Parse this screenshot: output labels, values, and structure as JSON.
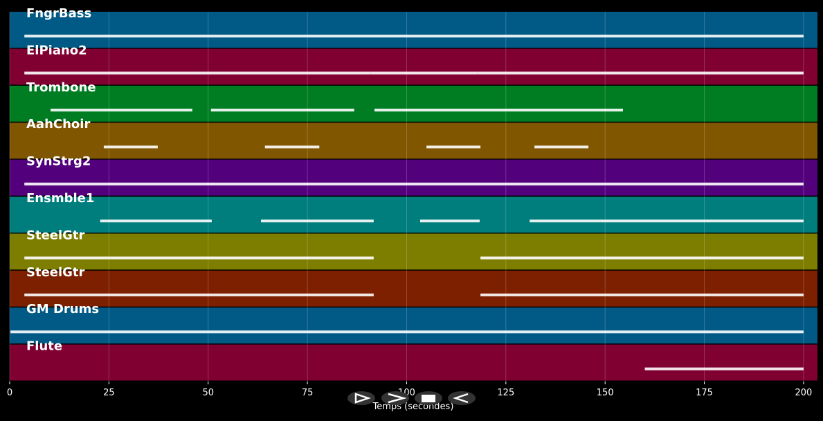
{
  "chart_data": {
    "type": "pianoroll",
    "xlabel": "Temps (secondes)",
    "xlim": [
      0,
      203.5
    ],
    "xticks": [
      0,
      25,
      50,
      75,
      100,
      125,
      150,
      175,
      200
    ],
    "grid": true,
    "tracks": [
      {
        "name": "FngrBass",
        "color": "#005a85",
        "spans": [
          [
            3.7,
            200
          ]
        ]
      },
      {
        "name": "ElPiano2",
        "color": "#800032",
        "spans": [
          [
            3.7,
            91
          ],
          [
            91,
            118
          ],
          [
            118,
            200
          ]
        ]
      },
      {
        "name": "Trombone",
        "color": "#007d22",
        "spans": [
          [
            10.3,
            46
          ],
          [
            50.7,
            86.8
          ],
          [
            91.9,
            154.5
          ]
        ]
      },
      {
        "name": "AahChoir",
        "color": "#805600",
        "spans": [
          [
            23.7,
            37.3
          ],
          [
            64.3,
            78
          ],
          [
            105,
            118.6
          ],
          [
            132.2,
            145.8
          ]
        ]
      },
      {
        "name": "SynStrg2",
        "color": "#53007d",
        "spans": [
          [
            3.7,
            200
          ]
        ]
      },
      {
        "name": "Ensmble1",
        "color": "#007d7d",
        "spans": [
          [
            22.8,
            50.9
          ],
          [
            63.3,
            91.7
          ],
          [
            103.4,
            118.4
          ],
          [
            131,
            200
          ]
        ]
      },
      {
        "name": "SteelGtr",
        "color": "#7d7d00",
        "spans": [
          [
            3.7,
            91.7
          ],
          [
            118.6,
            200
          ]
        ]
      },
      {
        "name": "SteelGtr",
        "color": "#7d2000",
        "spans": [
          [
            3.7,
            91.7
          ],
          [
            118.6,
            200
          ]
        ]
      },
      {
        "name": "GM Drums",
        "color": "#005a85",
        "spans": [
          [
            0.2,
            200
          ]
        ]
      },
      {
        "name": "Flute",
        "color": "#800032",
        "spans": [
          [
            160,
            200
          ]
        ]
      }
    ]
  }
}
